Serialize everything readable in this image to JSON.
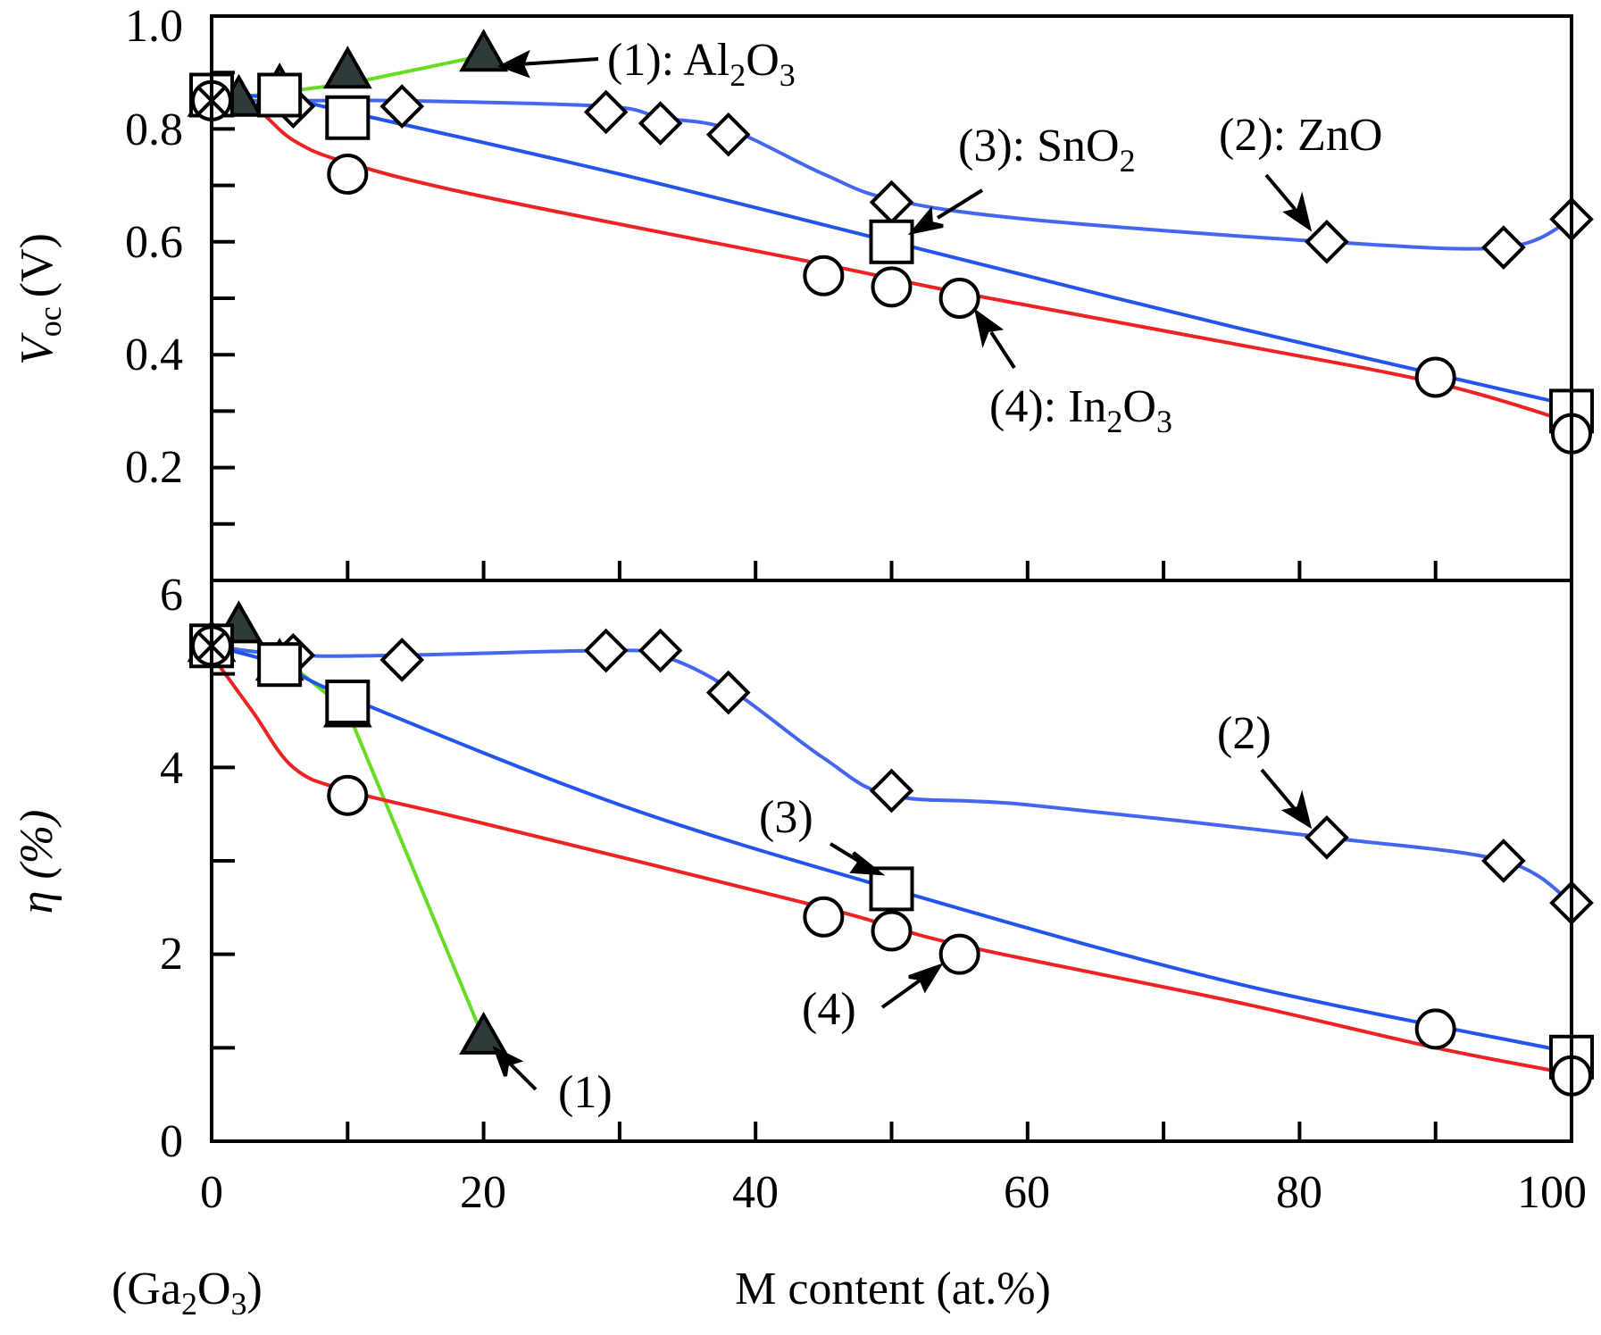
{
  "chart_data": [
    {
      "type": "line",
      "panel": "top",
      "ylabel": "V_oc (V)",
      "ylabel_parts": {
        "symbol": "V",
        "subscript": "oc",
        "unit": "(V)"
      },
      "ylim": [
        0,
        1.0
      ],
      "yticks": [
        0.2,
        0.4,
        0.6,
        0.8
      ],
      "ytick_labels": [
        "0.2",
        "0.4",
        "0.6",
        "0.8",
        "1.0"
      ],
      "xlim": [
        0,
        100
      ],
      "grid": false,
      "series": [
        {
          "id": "al2o3",
          "marker": "triangle",
          "line_color": "#66dd22",
          "x": [
            0,
            2,
            5,
            10,
            20
          ],
          "y": [
            0.85,
            0.85,
            0.87,
            0.9,
            0.93
          ],
          "curve": [
            [
              0,
              0.85
            ],
            [
              10,
              0.88
            ],
            [
              20,
              0.93
            ]
          ]
        },
        {
          "id": "zno",
          "marker": "diamond",
          "line_color": "#4466ee",
          "x": [
            0,
            6,
            14,
            29,
            33,
            38,
            50,
            82,
            95,
            100
          ],
          "y": [
            0.85,
            0.84,
            0.84,
            0.83,
            0.81,
            0.79,
            0.67,
            0.6,
            0.59,
            0.64
          ],
          "curve": [
            [
              0,
              0.85
            ],
            [
              6,
              0.85
            ],
            [
              14,
              0.85
            ],
            [
              29,
              0.84
            ],
            [
              33,
              0.82
            ],
            [
              38,
              0.8
            ],
            [
              45,
              0.72
            ],
            [
              50,
              0.675
            ],
            [
              60,
              0.64
            ],
            [
              82,
              0.6
            ],
            [
              95,
              0.59
            ],
            [
              100,
              0.64
            ]
          ]
        },
        {
          "id": "sno2",
          "marker": "square",
          "line_color": "#2255ee",
          "x": [
            0,
            5,
            10,
            50,
            100
          ],
          "y": [
            0.86,
            0.86,
            0.82,
            0.6,
            0.3
          ],
          "curve": [
            [
              0,
              0.86
            ],
            [
              5,
              0.855
            ],
            [
              10,
              0.83
            ],
            [
              30,
              0.72
            ],
            [
              50,
              0.6
            ],
            [
              75,
              0.45
            ],
            [
              100,
              0.31
            ]
          ]
        },
        {
          "id": "in2o3",
          "marker": "circle",
          "line_color": "#ee2222",
          "x": [
            0,
            10,
            45,
            50,
            55,
            90,
            100
          ],
          "y": [
            0.85,
            0.72,
            0.54,
            0.52,
            0.5,
            0.36,
            0.26
          ],
          "curve": [
            [
              0,
              0.85
            ],
            [
              3,
              0.84
            ],
            [
              6,
              0.78
            ],
            [
              10,
              0.74
            ],
            [
              20,
              0.68
            ],
            [
              45,
              0.56
            ],
            [
              55,
              0.51
            ],
            [
              75,
              0.42
            ],
            [
              90,
              0.35
            ],
            [
              100,
              0.28
            ]
          ]
        }
      ],
      "annotations": [
        {
          "id": "ann-al2o3",
          "label": "(1): Al",
          "sub1": "2",
          "mid": "O",
          "sub2": "3"
        },
        {
          "id": "ann-sno2",
          "label": "(3): SnO",
          "sub1": "2"
        },
        {
          "id": "ann-zno",
          "label": "(2): ZnO"
        },
        {
          "id": "ann-in2o3",
          "label": "(4): In",
          "sub1": "2",
          "mid": "O",
          "sub2": "3"
        }
      ]
    },
    {
      "type": "line",
      "panel": "bottom",
      "ylabel": "η (%)",
      "ylim": [
        0,
        6
      ],
      "yticks": [
        1,
        2,
        3,
        4,
        5
      ],
      "ytick_labels": [
        "0",
        "2",
        "4",
        "6"
      ],
      "xlabel": "M content (at.%)",
      "xlim": [
        0,
        100
      ],
      "xtick_labels": [
        "0",
        "20",
        "40",
        "60",
        "80",
        "100"
      ],
      "x_origin_label": {
        "pre": "(Ga",
        "sub1": "2",
        "mid": "O",
        "sub2": "3",
        "post": ")"
      },
      "grid": false,
      "series": [
        {
          "id": "al2o3",
          "marker": "triangle",
          "line_color": "#66dd22",
          "x": [
            0,
            2,
            5,
            10,
            20
          ],
          "y": [
            5.3,
            5.5,
            5.1,
            4.6,
            1.1
          ],
          "curve": [
            [
              0,
              5.3
            ],
            [
              5,
              5.2
            ],
            [
              10,
              4.6
            ],
            [
              20,
              1.1
            ]
          ]
        },
        {
          "id": "zno",
          "marker": "diamond",
          "line_color": "#4466ee",
          "x": [
            0,
            6,
            14,
            29,
            33,
            38,
            50,
            82,
            95,
            100
          ],
          "y": [
            5.3,
            5.2,
            5.15,
            5.25,
            5.25,
            4.8,
            3.75,
            3.25,
            3.0,
            2.55
          ],
          "curve": [
            [
              0,
              5.3
            ],
            [
              6,
              5.2
            ],
            [
              14,
              5.2
            ],
            [
              29,
              5.25
            ],
            [
              33,
              5.2
            ],
            [
              38,
              4.85
            ],
            [
              45,
              4.1
            ],
            [
              50,
              3.7
            ],
            [
              60,
              3.6
            ],
            [
              82,
              3.25
            ],
            [
              95,
              3.0
            ],
            [
              100,
              2.55
            ]
          ]
        },
        {
          "id": "sno2",
          "marker": "square",
          "line_color": "#2255ee",
          "x": [
            0,
            5,
            10,
            50,
            100
          ],
          "y": [
            5.3,
            5.1,
            4.7,
            2.7,
            0.9
          ],
          "curve": [
            [
              0,
              5.3
            ],
            [
              5,
              5.1
            ],
            [
              10,
              4.75
            ],
            [
              30,
              3.6
            ],
            [
              50,
              2.7
            ],
            [
              75,
              1.7
            ],
            [
              100,
              0.95
            ]
          ]
        },
        {
          "id": "in2o3",
          "marker": "circle",
          "line_color": "#ee2222",
          "x": [
            0,
            10,
            45,
            50,
            55,
            90,
            100
          ],
          "y": [
            5.3,
            3.7,
            2.4,
            2.25,
            2.0,
            1.2,
            0.7
          ],
          "curve": [
            [
              0,
              5.2
            ],
            [
              3,
              4.6
            ],
            [
              6,
              4.0
            ],
            [
              10,
              3.75
            ],
            [
              20,
              3.4
            ],
            [
              45,
              2.5
            ],
            [
              55,
              2.1
            ],
            [
              75,
              1.5
            ],
            [
              90,
              1.0
            ],
            [
              100,
              0.72
            ]
          ]
        }
      ],
      "annotations": [
        {
          "id": "ann-b1",
          "label": "(1)"
        },
        {
          "id": "ann-b2",
          "label": "(2)"
        },
        {
          "id": "ann-b3",
          "label": "(3)"
        },
        {
          "id": "ann-b4",
          "label": "(4)"
        }
      ]
    }
  ]
}
